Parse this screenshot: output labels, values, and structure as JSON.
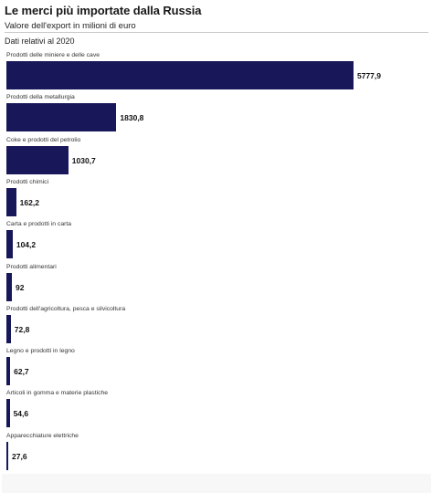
{
  "header": {
    "title": "Le merci più importate dalla Russia",
    "subtitle": "Valore dell'export in milioni di euro",
    "note": "Dati relativi al 2020"
  },
  "colors": {
    "bar": "#17175a",
    "background": "#ffffff",
    "footer": "#f7f7f7"
  },
  "chart_data": {
    "type": "bar",
    "orientation": "horizontal",
    "title": "Le merci più importate dalla Russia",
    "subtitle": "Valore dell'export in milioni di euro",
    "xlim": [
      0,
      6000
    ],
    "grid": false,
    "legend": "none",
    "categories": [
      "Prodotti delle miniere e delle cave",
      "Prodotti della metallurgia",
      "Coke e prodotti del petrolio",
      "Prodotti chimici",
      "Carta e prodotti in carta",
      "Prodotti alimentari",
      "Prodotti dell'agricoltura, pesca e silvicoltura",
      "Legno e prodotti in legno",
      "Articoli in gomma e materie plastiche",
      "Apparecchiature elettriche"
    ],
    "values": [
      5777.9,
      1830.8,
      1030.7,
      162.2,
      104.2,
      92,
      72.8,
      62.7,
      54.6,
      27.6
    ],
    "value_labels": [
      "5777,9",
      "1830,8",
      "1030,7",
      "162,2",
      "104,2",
      "92",
      "72,8",
      "62,7",
      "54,6",
      "27,6"
    ]
  }
}
